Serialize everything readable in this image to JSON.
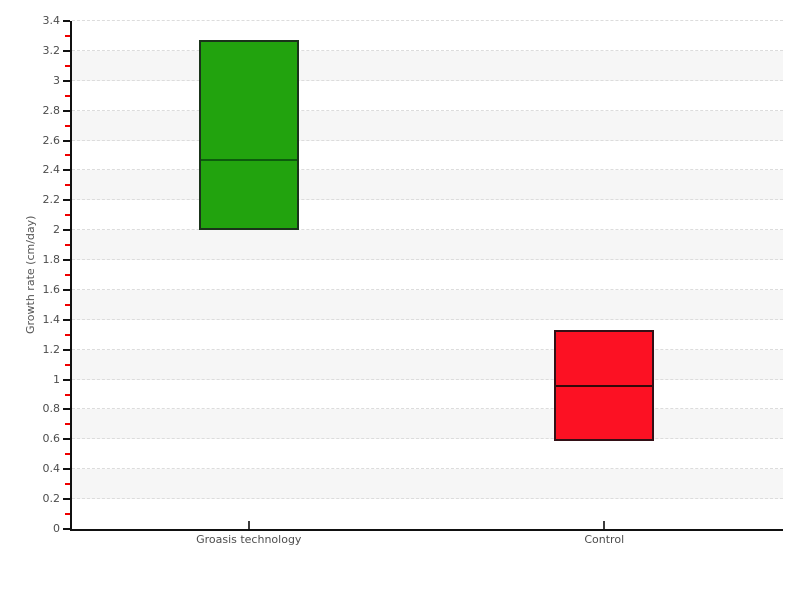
{
  "chart_data": {
    "type": "box",
    "title": "",
    "xlabel": "",
    "ylabel": "Growth rate (cm/day)",
    "categories": [
      "Groasis technology",
      "Control"
    ],
    "series": [
      {
        "name": "Groasis technology",
        "low": 2.0,
        "median": 2.47,
        "high": 3.27,
        "fill": "#22a30e",
        "border": "#1a331a",
        "median_color": "#0c5c0c"
      },
      {
        "name": "Control",
        "low": 0.59,
        "median": 0.96,
        "high": 1.33,
        "fill": "#fc1123",
        "border": "#331016",
        "median_color": "#330a0a"
      }
    ],
    "ylim": [
      0,
      3.4
    ],
    "ytick_step": 0.2,
    "minor_tick_step": 0.1,
    "grid": "horizontal-dashed",
    "stripes": true,
    "legend": "none"
  },
  "style": {
    "background": "#ffffff",
    "stripe": "#f6f6f6",
    "gridline": "#dcdcdc",
    "axis": "#111111",
    "major_tick": "#111111",
    "minor_tick": "#ee0000",
    "x_tick": "#3c3c3c",
    "tick_label": "#4d4d4d",
    "axis_title": "#555555"
  }
}
